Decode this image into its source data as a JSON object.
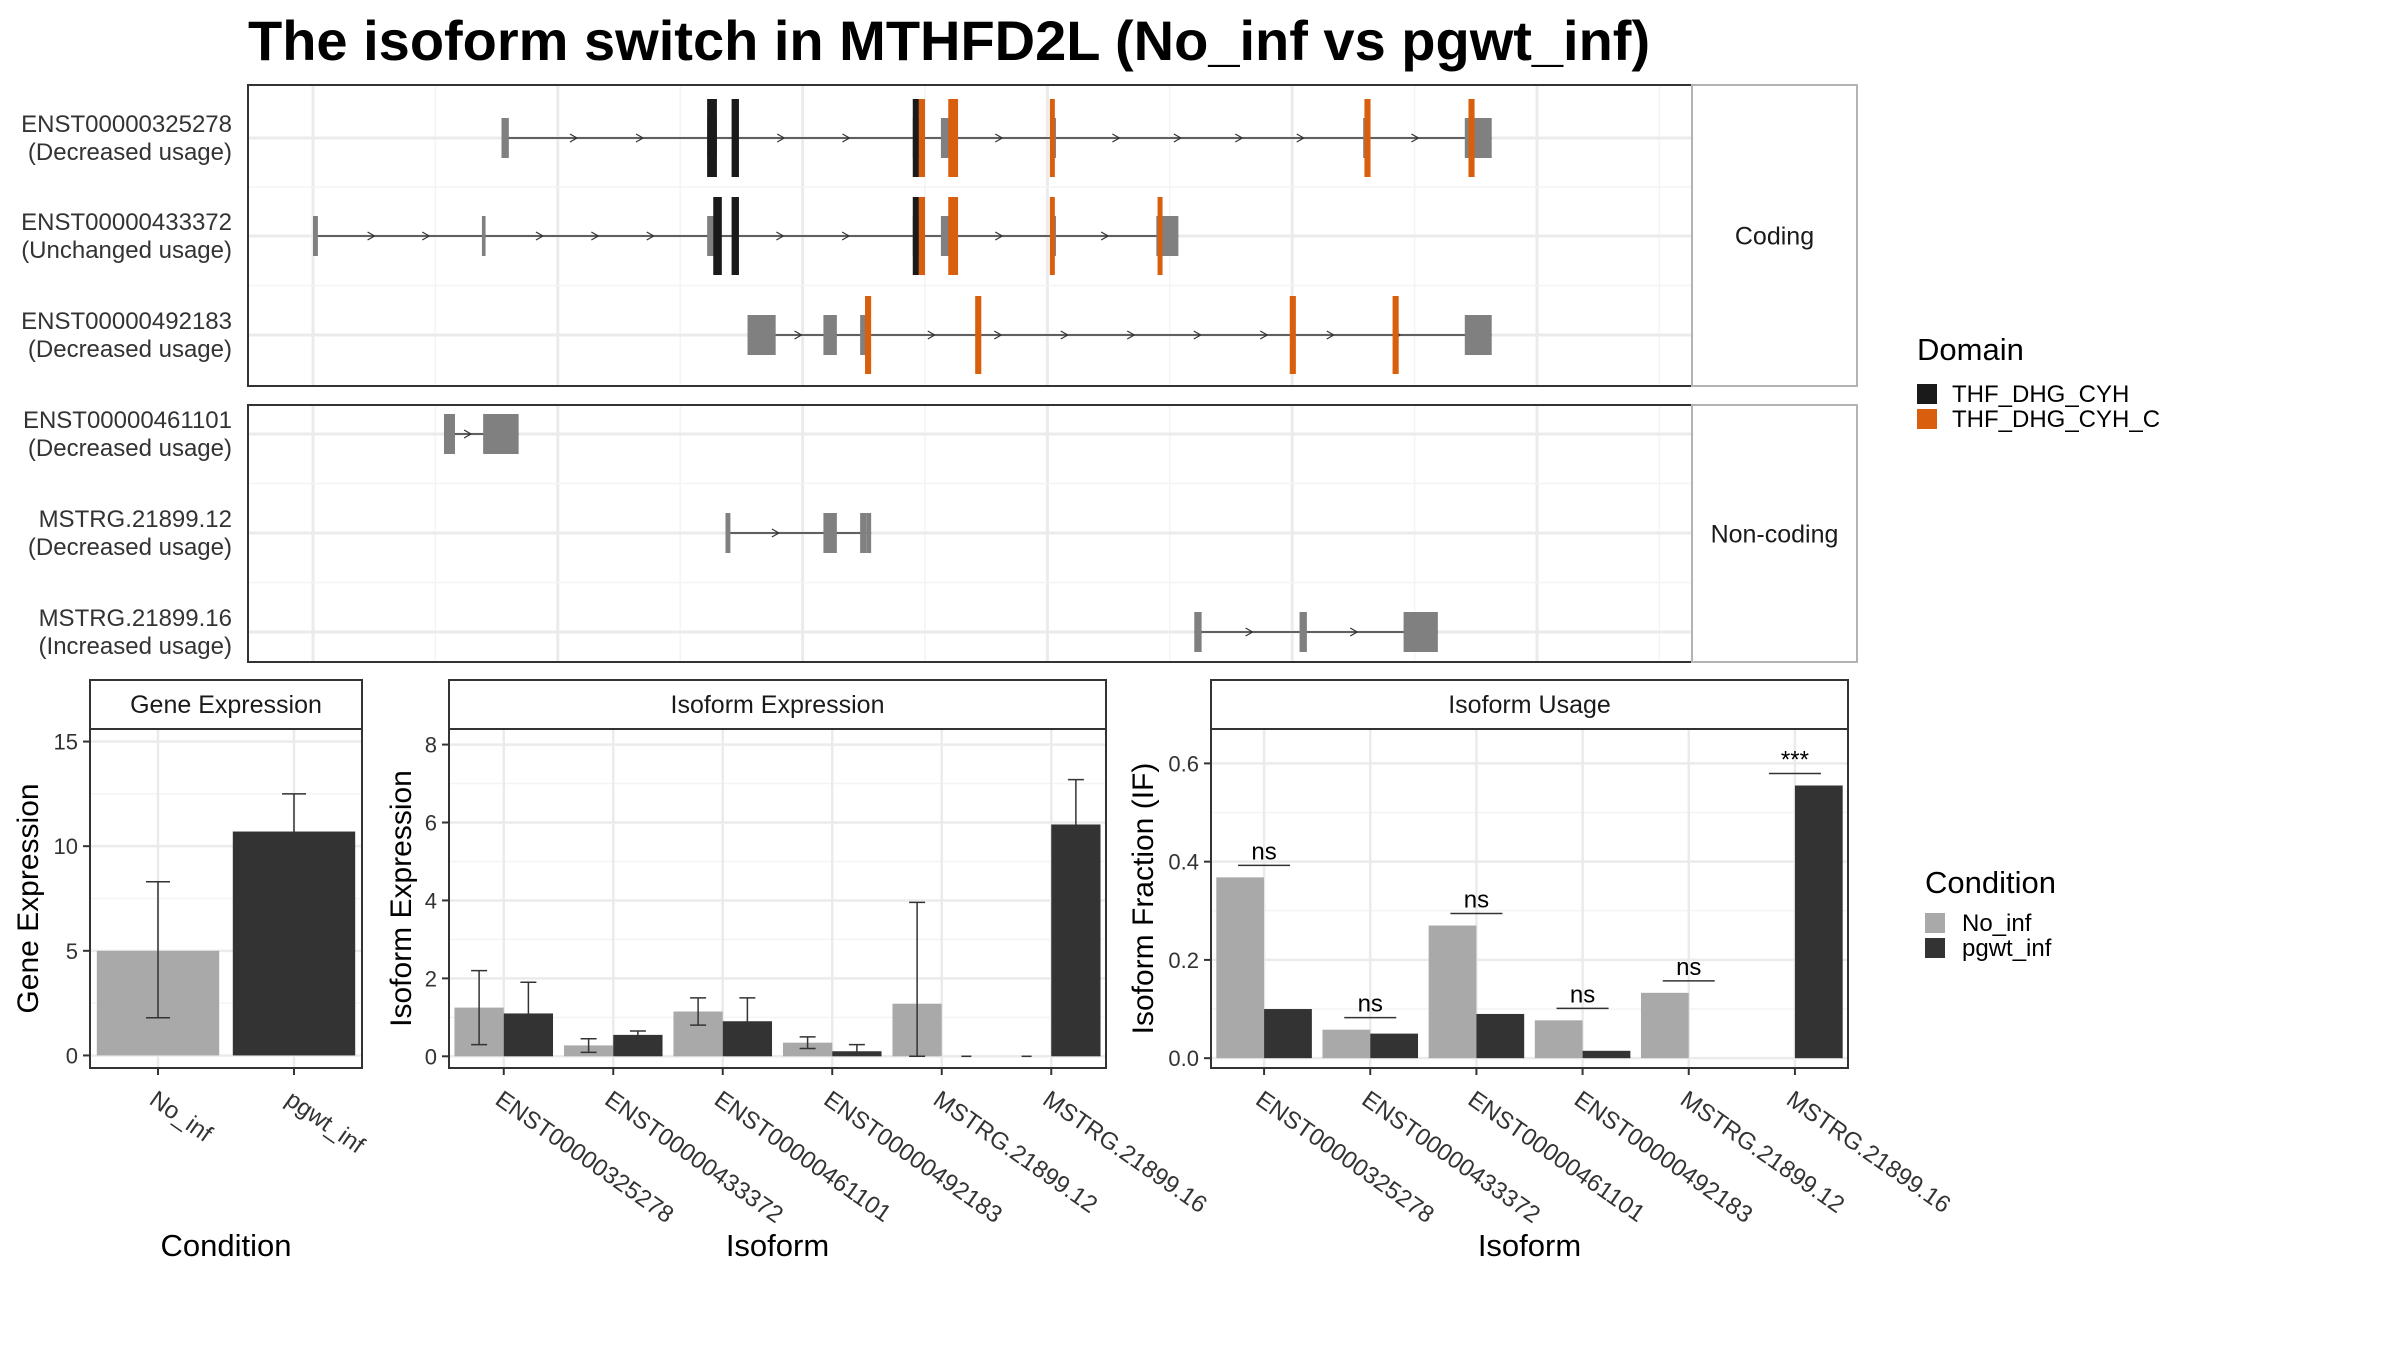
{
  "title": "The isoform switch in MTHFD2L (No_inf vs pgwt_inf)",
  "colors": {
    "THF_DHG_CYH": "#1a1a1a",
    "THF_DHG_CYH_C": "#d95f0e",
    "exon": "#808080",
    "No_inf": "#a9a9a9",
    "pgwt_inf": "#333333"
  },
  "chart_data": [
    {
      "type": "gene_structure",
      "genomic_range": [
        0,
        1000
      ],
      "legend": {
        "title": "Domain",
        "items": [
          {
            "name": "THF_DHG_CYH",
            "color": "#1a1a1a"
          },
          {
            "name": "THF_DHG_CYH_C",
            "color": "#d95f0e"
          }
        ]
      },
      "facets": [
        {
          "label": "Coding",
          "transcripts": [
            {
              "id": "ENST00000325278",
              "usage": "(Decreased usage)",
              "exons": [
                [
                  154,
                  160
                ],
                [
                  322,
                  330
                ],
                [
                  490,
                  495
                ],
                [
                  513,
                  520
                ],
                [
                  603,
                  607
                ],
                [
                  858,
                  862
                ],
                [
                  941,
                  963
                ]
              ],
              "domains": [
                {
                  "name": "THF_DHG_CYH",
                  "ranges": [
                    [
                      322,
                      330
                    ],
                    [
                      342,
                      348
                    ],
                    [
                      490,
                      495
                    ]
                  ]
                },
                {
                  "name": "THF_DHG_CYH_C",
                  "ranges": [
                    [
                      495,
                      500
                    ],
                    [
                      519,
                      527
                    ],
                    [
                      602,
                      606
                    ],
                    [
                      859,
                      864
                    ],
                    [
                      944,
                      949
                    ]
                  ]
                }
              ]
            },
            {
              "id": "ENST00000433372",
              "usage": "(Unchanged usage)",
              "exons": [
                [
                  0,
                  4
                ],
                [
                  138,
                  141
                ],
                [
                  322,
                  329
                ],
                [
                  490,
                  495
                ],
                [
                  513,
                  520
                ],
                [
                  603,
                  607
                ],
                [
                  689,
                  692
                ],
                [
                  692,
                  707
                ]
              ],
              "domains": [
                {
                  "name": "THF_DHG_CYH",
                  "ranges": [
                    [
                      327,
                      334
                    ],
                    [
                      342,
                      348
                    ],
                    [
                      490,
                      495
                    ]
                  ]
                },
                {
                  "name": "THF_DHG_CYH_C",
                  "ranges": [
                    [
                      495,
                      500
                    ],
                    [
                      519,
                      527
                    ],
                    [
                      602,
                      606
                    ],
                    [
                      690,
                      693
                    ]
                  ]
                }
              ]
            },
            {
              "id": "ENST00000492183",
              "usage": "(Decreased usage)",
              "exons": [
                [
                  355,
                  378
                ],
                [
                  417,
                  428
                ],
                [
                  447,
                  452
                ],
                [
                  941,
                  963
                ]
              ],
              "domains": [
                {
                  "name": "THF_DHG_CYH_C",
                  "ranges": [
                    [
                      451,
                      456
                    ],
                    [
                      541,
                      546
                    ],
                    [
                      798,
                      803
                    ],
                    [
                      882,
                      887
                    ]
                  ]
                }
              ]
            }
          ]
        },
        {
          "label": "Non-coding",
          "transcripts": [
            {
              "id": "ENST00000461101",
              "usage": "(Decreased usage)",
              "exons": [
                [
                  107,
                  116
                ],
                [
                  139,
                  168
                ]
              ],
              "domains": []
            },
            {
              "id": "MSTRG.21899.12",
              "usage": "(Decreased usage)",
              "exons": [
                [
                  337,
                  341
                ],
                [
                  417,
                  428
                ],
                [
                  447,
                  452
                ],
                [
                  452,
                  456
                ]
              ],
              "domains": []
            },
            {
              "id": "MSTRG.21899.16",
              "usage": "(Increased usage)",
              "exons": [
                [
                  720,
                  726
                ],
                [
                  806,
                  812
                ],
                [
                  891,
                  919
                ]
              ],
              "domains": []
            }
          ]
        }
      ]
    },
    {
      "type": "bar",
      "strip": "Gene Expression",
      "xlabel": "Condition",
      "ylabel": "Gene Expression",
      "categories": [
        "No_inf",
        "pgwt_inf"
      ],
      "values": [
        5.0,
        10.7
      ],
      "errors": [
        [
          1.8,
          8.3
        ],
        [
          9.0,
          12.5
        ]
      ],
      "ylim": [
        -0.6,
        15.6
      ],
      "yticks": [
        0,
        5,
        10,
        15
      ],
      "grid": true
    },
    {
      "type": "bar",
      "strip": "Isoform Expression",
      "xlabel": "Isoform",
      "ylabel": "Isoform Expression",
      "categories": [
        "ENST00000325278",
        "ENST00000433372",
        "ENST00000461101",
        "ENST00000492183",
        "MSTRG.21899.12",
        "MSTRG.21899.16"
      ],
      "series": [
        {
          "name": "No_inf",
          "values": [
            1.25,
            0.28,
            1.15,
            0.35,
            1.35,
            0.0
          ],
          "errors": [
            [
              0.3,
              2.2
            ],
            [
              0.1,
              0.45
            ],
            [
              0.8,
              1.5
            ],
            [
              0.2,
              0.5
            ],
            [
              0.0,
              3.95
            ],
            [
              0.0,
              0.0
            ]
          ]
        },
        {
          "name": "pgwt_inf",
          "values": [
            1.1,
            0.55,
            0.9,
            0.13,
            0.0,
            5.95
          ],
          "errors": [
            [
              0.3,
              1.9
            ],
            [
              0.45,
              0.65
            ],
            [
              0.3,
              1.5
            ],
            [
              0.05,
              0.3
            ],
            [
              0.0,
              0.0
            ],
            [
              4.8,
              7.1
            ]
          ]
        }
      ],
      "ylim": [
        -0.3,
        8.4
      ],
      "yticks": [
        0,
        2,
        4,
        6,
        8
      ],
      "grid": true
    },
    {
      "type": "bar",
      "strip": "Isoform Usage",
      "xlabel": "Isoform",
      "ylabel": "Isoform Fraction (IF)",
      "categories": [
        "ENST00000325278",
        "ENST00000433372",
        "ENST00000461101",
        "ENST00000492183",
        "MSTRG.21899.12",
        "MSTRG.21899.16"
      ],
      "series": [
        {
          "name": "No_inf",
          "values": [
            0.368,
            0.058,
            0.27,
            0.077,
            0.133,
            0.0
          ]
        },
        {
          "name": "pgwt_inf",
          "values": [
            0.1,
            0.05,
            0.09,
            0.015,
            0.0,
            0.555
          ]
        }
      ],
      "significance": [
        "ns",
        "ns",
        "ns",
        "ns",
        "ns",
        "***"
      ],
      "ylim": [
        -0.02,
        0.67
      ],
      "yticks": [
        0.0,
        0.2,
        0.4,
        0.6
      ],
      "ytick_labels": [
        "0.0",
        "0.2",
        "0.4",
        "0.6"
      ],
      "grid": true
    }
  ],
  "condition_legend": {
    "title": "Condition",
    "items": [
      {
        "name": "No_inf",
        "color": "#a9a9a9"
      },
      {
        "name": "pgwt_inf",
        "color": "#333333"
      }
    ]
  }
}
